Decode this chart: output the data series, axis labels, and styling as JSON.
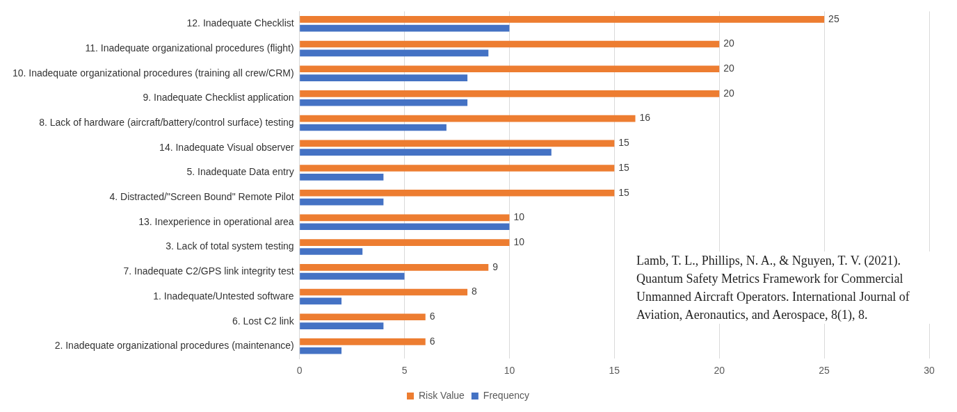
{
  "chart_data": {
    "type": "bar",
    "orientation": "horizontal",
    "categories": [
      "12. Inadequate Checklist",
      "11. Inadequate organizational procedures (flight)",
      "10. Inadequate organizational procedures (training all crew/CRM)",
      "9. Inadequate Checklist application",
      "8. Lack of hardware (aircraft/battery/control surface) testing",
      "14. Inadequate Visual observer",
      "5. Inadequate Data entry",
      "4. Distracted/\"Screen Bound\" Remote Pilot",
      "13. Inexperience in operational area",
      "3. Lack of total system testing",
      "7. Inadequate C2/GPS link integrity test",
      "1. Inadequate/Untested software",
      "6. Lost C2 link",
      "2. Inadequate organizational procedures (maintenance)"
    ],
    "series": [
      {
        "name": "Risk Value",
        "color": "#ed7d31",
        "values": [
          25,
          20,
          20,
          20,
          16,
          15,
          15,
          15,
          10,
          10,
          9,
          8,
          6,
          6
        ],
        "value_labels": [
          "25",
          "20",
          "20",
          "20",
          "16",
          "15",
          "15",
          "15",
          "10",
          "10",
          "9",
          "8",
          "6",
          "6"
        ]
      },
      {
        "name": "Frequency",
        "color": "#4472c4",
        "values": [
          10,
          9,
          8,
          8,
          7,
          12,
          4,
          4,
          10,
          3,
          5,
          2,
          4,
          2
        ]
      }
    ],
    "xlim": [
      0,
      30
    ],
    "xticks": [
      0,
      5,
      10,
      15,
      20,
      25,
      30
    ],
    "grid": "x",
    "legend": "bottom",
    "annotations": [
      "Lamb, T. L., Phillips, N. A., & Nguyen, T. V. (2021). Quantum Safety Metrics Framework for Commercial Unmanned Aircraft Operators. International Journal of Aviation, Aeronautics, and Aerospace, 8(1), 8."
    ]
  }
}
